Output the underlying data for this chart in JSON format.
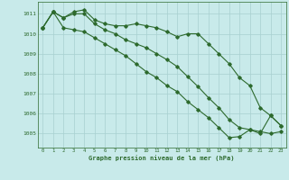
{
  "x": [
    0,
    1,
    2,
    3,
    4,
    5,
    6,
    7,
    8,
    9,
    10,
    11,
    12,
    13,
    14,
    15,
    16,
    17,
    18,
    19,
    20,
    21,
    22,
    23
  ],
  "line1": [
    1010.3,
    1011.1,
    1010.8,
    1011.1,
    1011.2,
    1010.7,
    1010.5,
    1010.4,
    1010.4,
    1010.5,
    1010.4,
    1010.3,
    1010.1,
    1009.85,
    1010.0,
    1010.0,
    1009.5,
    1009.0,
    1008.5,
    1007.8,
    1007.4,
    1006.3,
    1005.9,
    1005.4
  ],
  "line2": [
    1010.3,
    1011.1,
    1010.8,
    1011.0,
    1011.0,
    1010.5,
    1010.2,
    1010.0,
    1009.7,
    1009.5,
    1009.3,
    1009.0,
    1008.7,
    1008.35,
    1007.85,
    1007.35,
    1006.8,
    1006.3,
    1005.7,
    1005.3,
    1005.2,
    1005.1,
    1005.0,
    1005.1
  ],
  "line3": [
    1010.3,
    1011.1,
    1010.3,
    1010.2,
    1010.1,
    1009.8,
    1009.5,
    1009.2,
    1008.9,
    1008.5,
    1008.1,
    1007.8,
    1007.4,
    1007.1,
    1006.6,
    1006.2,
    1005.8,
    1005.3,
    1004.8,
    1004.85,
    1005.2,
    1005.0,
    1005.9,
    1005.4
  ],
  "line_color": "#2d6a2d",
  "bg_color": "#c8eaea",
  "grid_color": "#a8d0d0",
  "ylabel_values": [
    1005,
    1006,
    1007,
    1008,
    1009,
    1010,
    1011
  ],
  "xlabel": "Graphe pression niveau de la mer (hPa)",
  "ylim_min": 1004.3,
  "ylim_max": 1011.6,
  "marker": "D",
  "marker_size": 1.8,
  "line_width": 0.8
}
